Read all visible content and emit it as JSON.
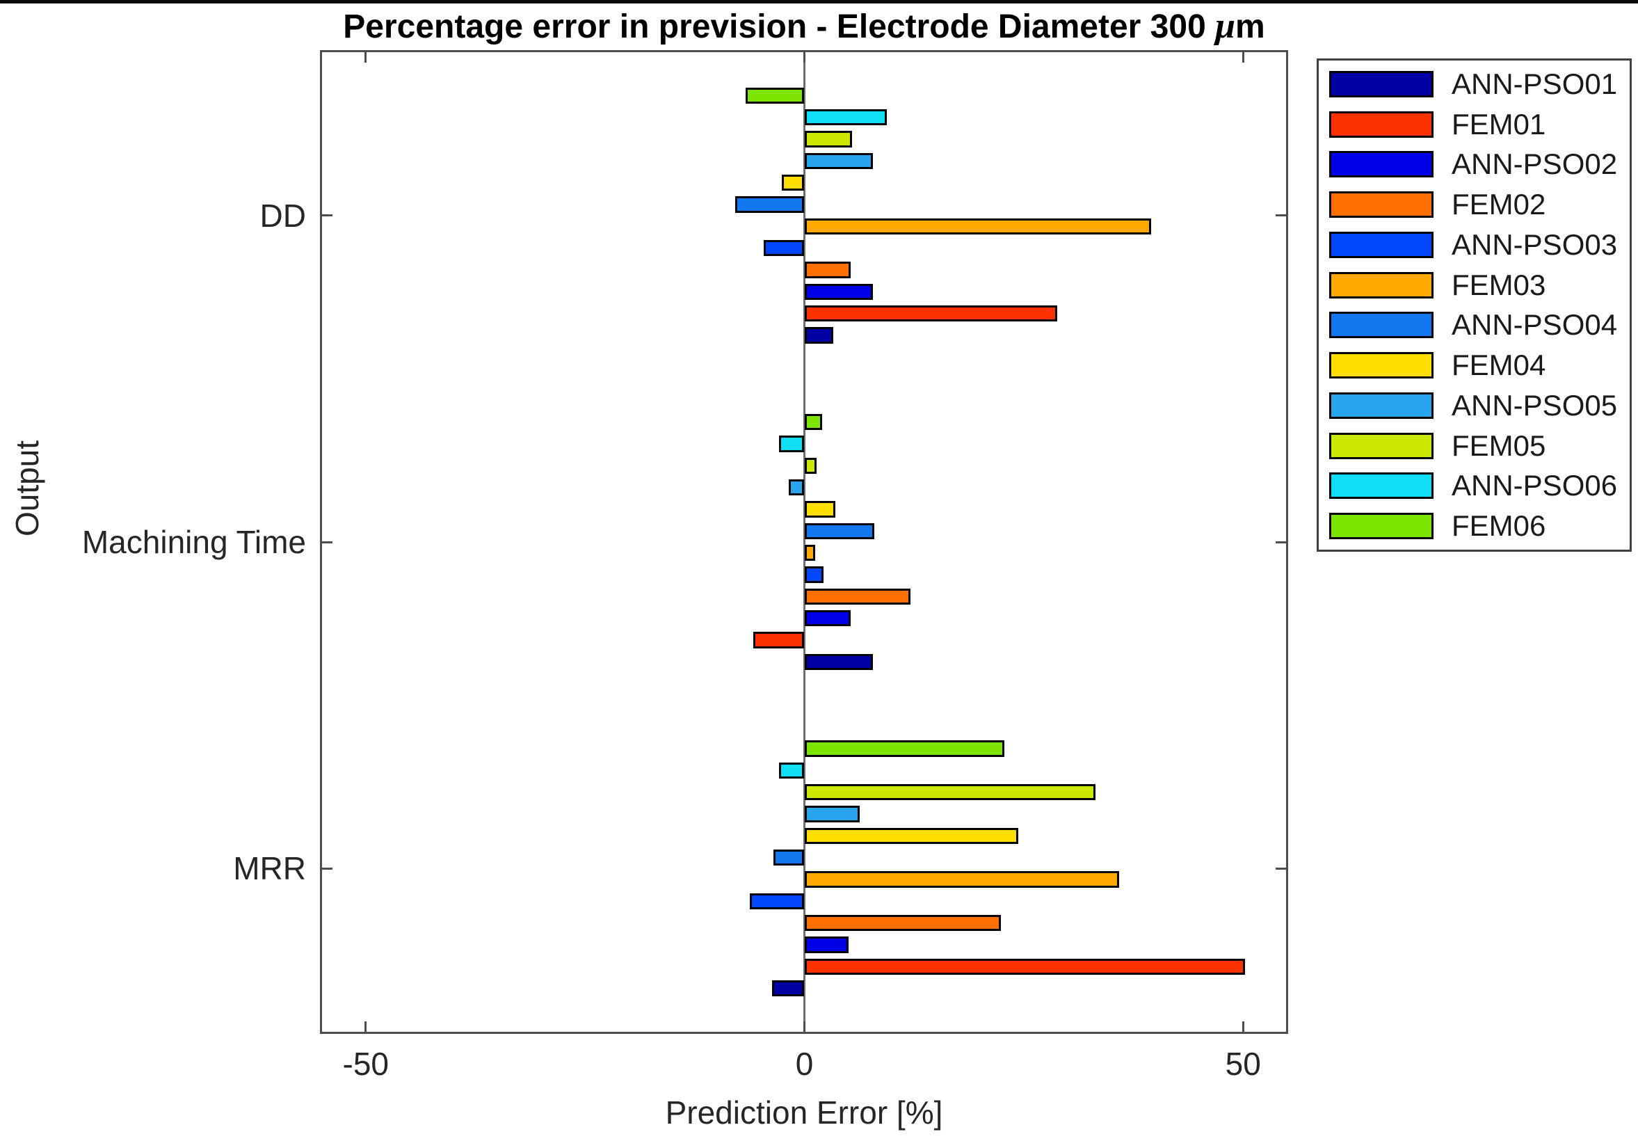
{
  "chart_data": {
    "type": "bar",
    "orientation": "horizontal-grouped",
    "title": "Percentage error in prevision - Electrode Diameter 300 μm",
    "title_parts": {
      "prefix": "Percentage error in prevision - Electrode Diameter 300 ",
      "mu": "μ",
      "suffix": "m"
    },
    "xlabel": "Prediction Error [%]",
    "ylabel": "Output",
    "xlim": [
      -55,
      55
    ],
    "x_ticks": [
      -50,
      0,
      50
    ],
    "x_tick_labels": [
      "-50",
      "0",
      "50"
    ],
    "grid": "zero-line-only",
    "categories": [
      "DD",
      "Machining Time",
      "MRR"
    ],
    "legend_position": "outside-upper-right",
    "series": [
      {
        "name": "ANN-PSO01",
        "color": "#0000A3",
        "values": [
          3.3,
          7.8,
          -3.7
        ]
      },
      {
        "name": "FEM01",
        "color": "#FE3200",
        "values": [
          28.8,
          -5.8,
          50.2
        ]
      },
      {
        "name": "ANN-PSO02",
        "color": "#0000E6",
        "values": [
          7.8,
          5.3,
          5.0
        ]
      },
      {
        "name": "FEM02",
        "color": "#FF7000",
        "values": [
          5.3,
          12.1,
          22.4
        ]
      },
      {
        "name": "ANN-PSO03",
        "color": "#0046FA",
        "values": [
          -4.6,
          2.2,
          -6.2
        ]
      },
      {
        "name": "FEM03",
        "color": "#FFA800",
        "values": [
          39.5,
          1.2,
          35.9
        ]
      },
      {
        "name": "ANN-PSO04",
        "color": "#1377F0",
        "values": [
          -7.9,
          8.0,
          -3.5
        ]
      },
      {
        "name": "FEM04",
        "color": "#FFDE00",
        "values": [
          -2.6,
          3.5,
          24.4
        ]
      },
      {
        "name": "ANN-PSO05",
        "color": "#29A5EE",
        "values": [
          7.8,
          -1.8,
          6.3
        ]
      },
      {
        "name": "FEM05",
        "color": "#CDE800",
        "values": [
          5.4,
          1.4,
          33.2
        ]
      },
      {
        "name": "ANN-PSO06",
        "color": "#10DEF5",
        "values": [
          9.4,
          -2.9,
          -2.9
        ]
      },
      {
        "name": "FEM06",
        "color": "#7CE400",
        "values": [
          -6.7,
          2.0,
          22.8
        ]
      }
    ]
  }
}
